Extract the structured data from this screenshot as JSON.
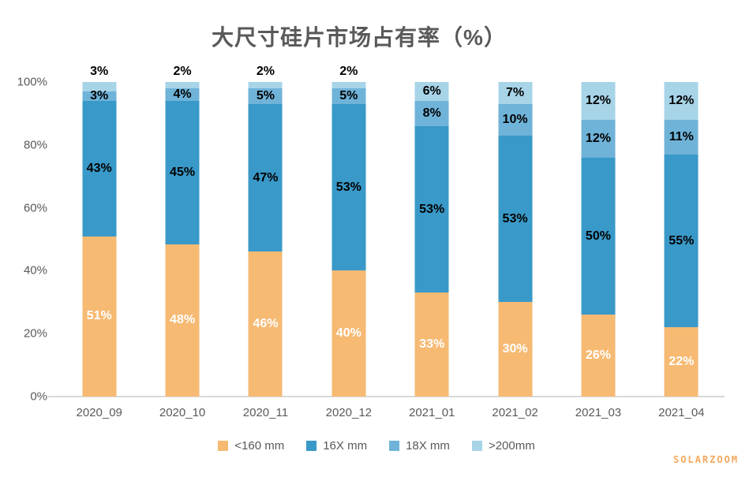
{
  "title": "大尺寸硅片市场占有率（%）",
  "watermark": "SOLARZOOM",
  "colors": {
    "axis_line": "#D9D9D9",
    "axis_text": "#595959",
    "title_text": "#595959",
    "watermark_text": "#F4A95D"
  },
  "chart_data": {
    "type": "bar",
    "stacked": true,
    "title": "大尺寸硅片市场占有率（%）",
    "categories": [
      "2020_09",
      "2020_10",
      "2020_11",
      "2020_12",
      "2021_01",
      "2021_02",
      "2021_03",
      "2021_04"
    ],
    "series": [
      {
        "name": "<160 mm",
        "color": "#F6BA73",
        "label_color": "#FFFFFF",
        "values": [
          51,
          48,
          46,
          40,
          33,
          30,
          26,
          22
        ]
      },
      {
        "name": "16X mm",
        "color": "#3999C8",
        "label_color": "#000000",
        "values": [
          43,
          45,
          47,
          53,
          53,
          53,
          50,
          55
        ]
      },
      {
        "name": "18X mm",
        "color": "#6FB3D9",
        "label_color": "#000000",
        "values": [
          3,
          4,
          5,
          5,
          8,
          10,
          12,
          11
        ]
      },
      {
        "name": ">200mm",
        "color": "#A8D4E8",
        "label_color": "#000000",
        "values": [
          3,
          2,
          2,
          2,
          6,
          7,
          12,
          12
        ]
      }
    ],
    "xlabel": "",
    "ylabel": "",
    "ylim": [
      0,
      100
    ],
    "yticks": [
      "0%",
      "20%",
      "40%",
      "60%",
      "80%",
      "100%"
    ],
    "grid": false,
    "legend_position": "bottom",
    "data_labels": "percent"
  }
}
